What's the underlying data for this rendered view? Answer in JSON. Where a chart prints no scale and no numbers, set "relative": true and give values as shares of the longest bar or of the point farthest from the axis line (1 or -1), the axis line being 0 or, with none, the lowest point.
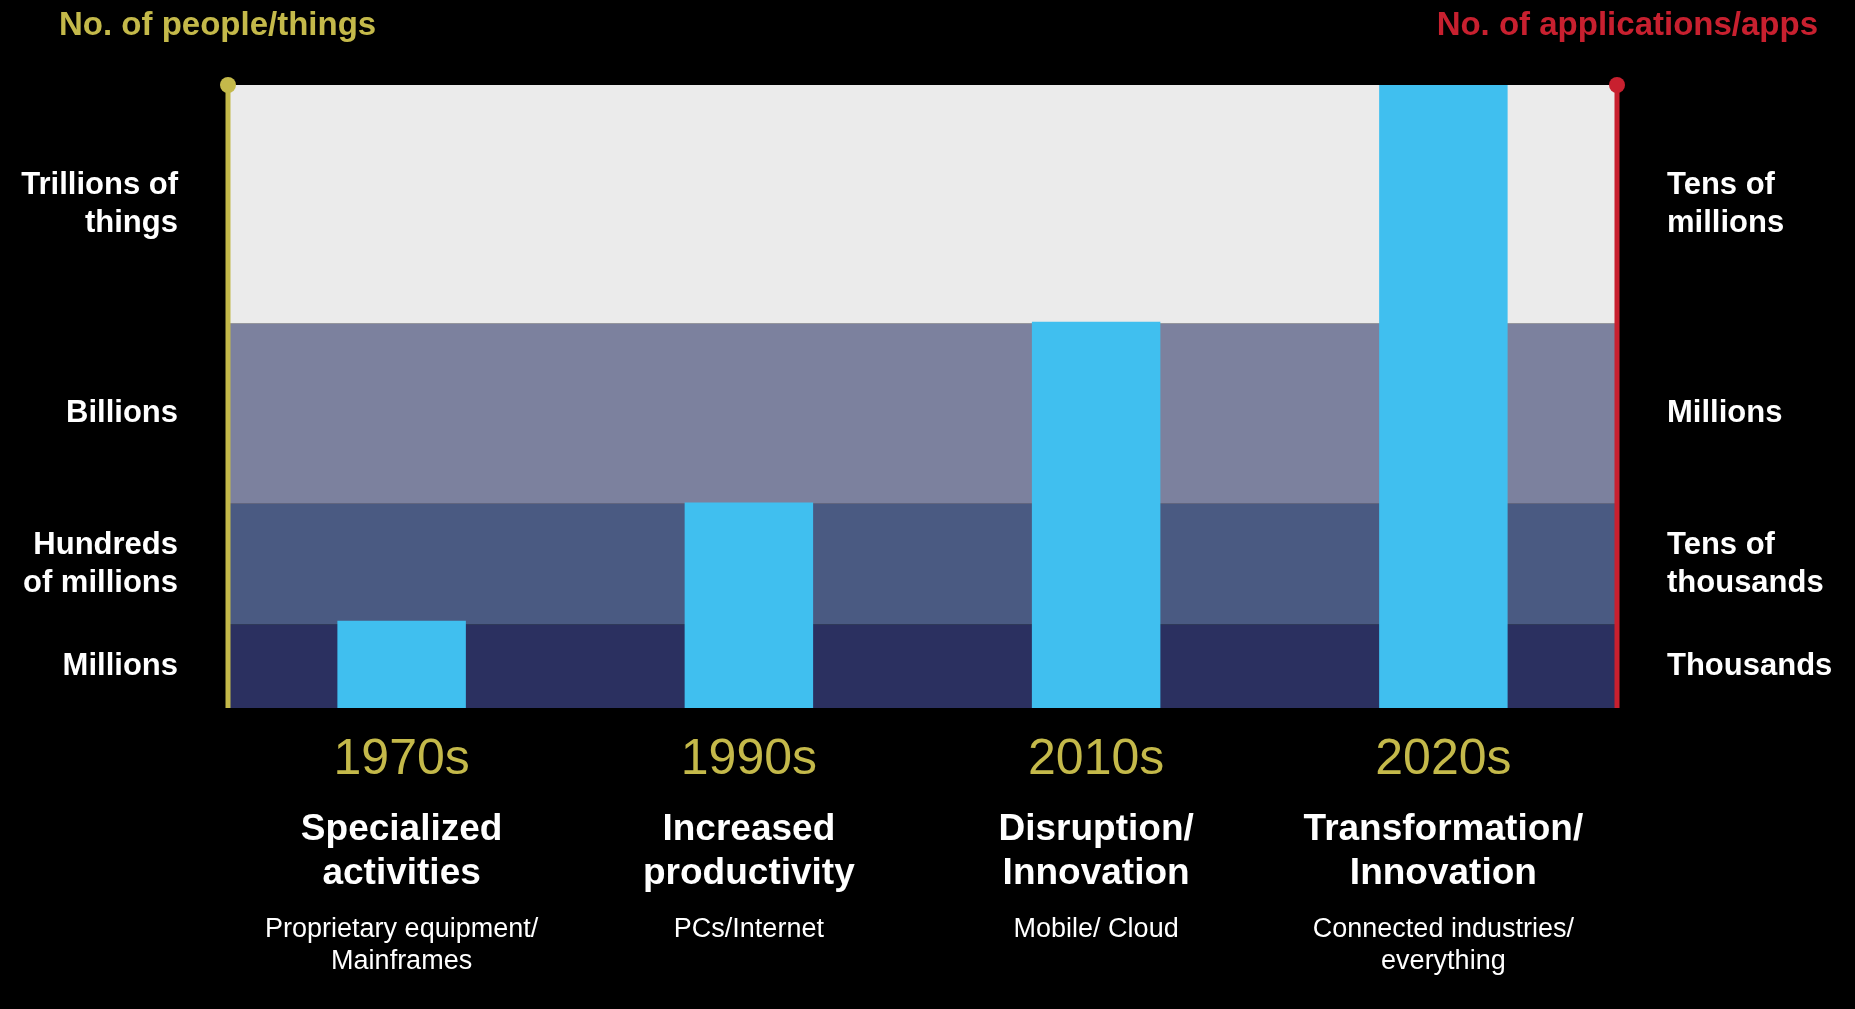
{
  "chart_data": {
    "type": "bar",
    "relative": true,
    "ylabel": "No. of people/things",
    "y2label": "No. of applications/apps",
    "categories": [
      "1970s",
      "1990s",
      "2010s",
      "2020s"
    ],
    "values": [
      0.14,
      0.33,
      0.62,
      1
    ],
    "color": "#40bfef",
    "bands": [
      {
        "axis": "y",
        "from": 0,
        "to": 0.134,
        "label": "Millions",
        "color": "#2b3060"
      },
      {
        "axis": "y",
        "from": 0.134,
        "to": 0.328,
        "label": "Hundreds of millions",
        "color": "#4a5a82"
      },
      {
        "axis": "y",
        "from": 0.328,
        "to": 0.617,
        "label": "Billions",
        "color": "#7c819e"
      },
      {
        "axis": "y",
        "from": 0.617,
        "to": 1,
        "label": "Trillions of things",
        "color": "#ebebeb"
      }
    ],
    "annotations": [
      "Thousands",
      "Tens of thousands",
      "Millions",
      "Tens of millions",
      "Specialized activities",
      "Proprietary equipment/ Mainframes",
      "Increased productivity",
      "PCs/Internet",
      "Disruption/ Innovation",
      "Mobile/ Cloud",
      "Transformation/ Innovation",
      "Connected industries/ everything"
    ],
    "legend": false
  }
}
